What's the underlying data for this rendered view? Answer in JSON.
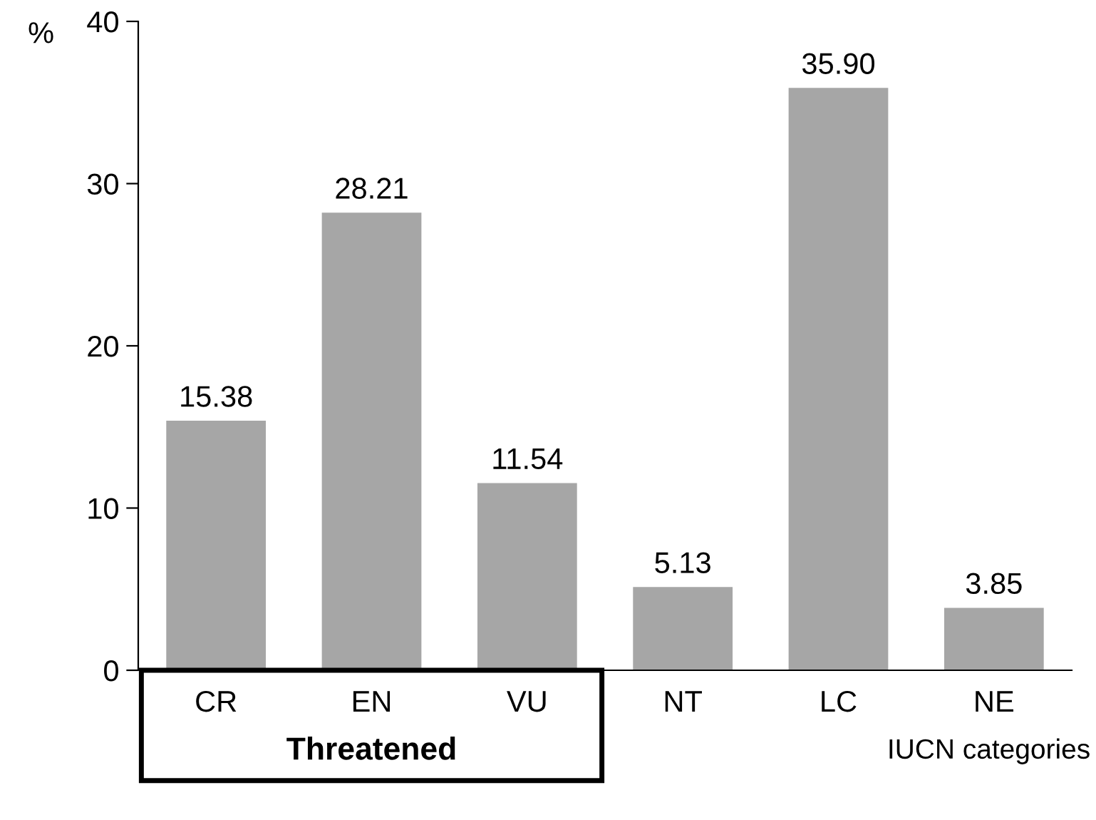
{
  "chart_data": {
    "type": "bar",
    "categories": [
      "CR",
      "EN",
      "VU",
      "NT",
      "LC",
      "NE"
    ],
    "values": [
      15.38,
      28.21,
      11.54,
      5.13,
      35.9,
      3.85
    ],
    "value_labels": [
      "15.38",
      "28.21",
      "11.54",
      "5.13",
      "35.90",
      "3.85"
    ],
    "color": "#a6a6a6",
    "ylabel": "%",
    "xlabel": "IUCN categories",
    "ylim": [
      0,
      40
    ],
    "yticks": [
      0,
      10,
      20,
      30,
      40
    ],
    "grid": false,
    "legend": false,
    "annotations": [
      "Threatened"
    ]
  }
}
